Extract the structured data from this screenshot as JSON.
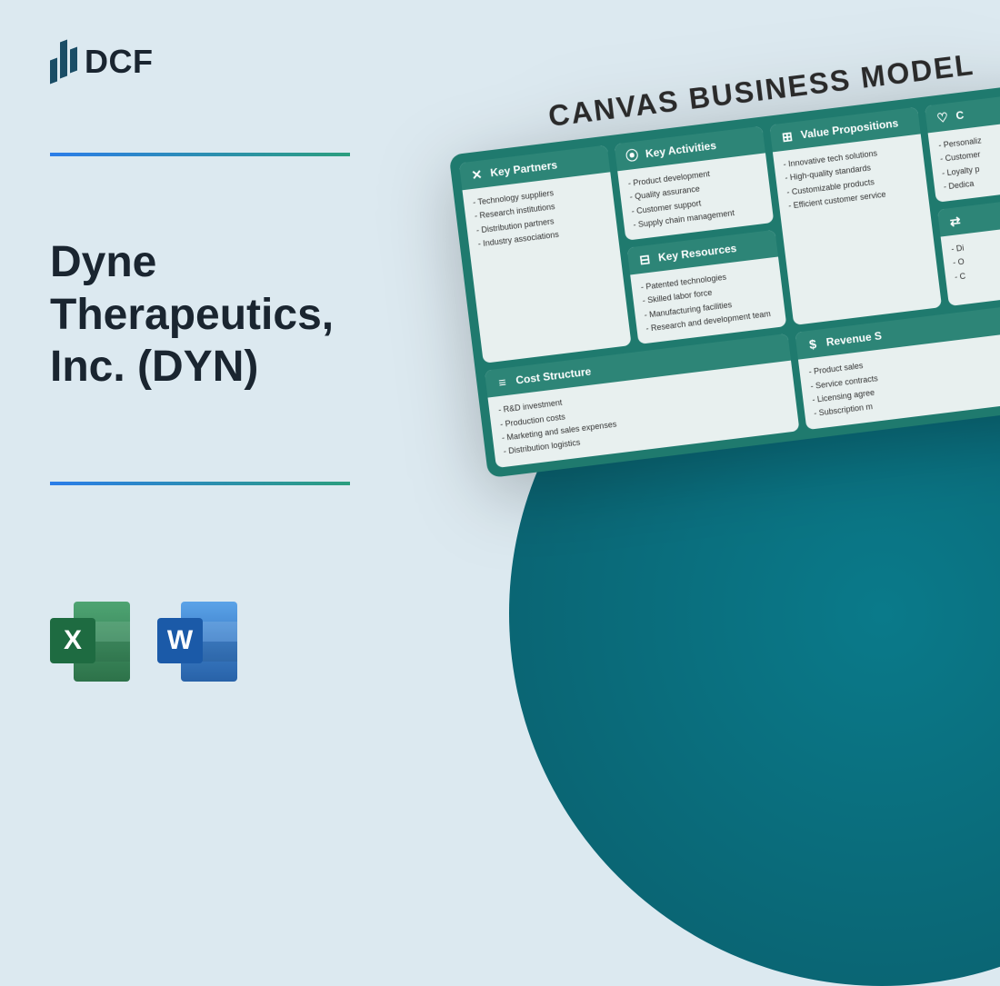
{
  "logo": {
    "text": "DCF"
  },
  "title": "Dyne Therapeutics, Inc. (DYN)",
  "colors": {
    "page_bg": "#dce9f0",
    "divider_gradient": [
      "#2b7de9",
      "#2b9e7e"
    ],
    "teal_circle": "#0a7a8a",
    "canvas_board_bg": "#1f7a6e",
    "canvas_header_bg": "#2d8577",
    "canvas_card_bg": "#e8f0ef",
    "title_color": "#1a2530"
  },
  "file_icons": {
    "excel": {
      "letter": "X",
      "badge_color": "#1e6b41"
    },
    "word": {
      "letter": "W",
      "badge_color": "#1b5aa8"
    }
  },
  "canvas": {
    "title": "CANVAS BUSINESS MODEL",
    "sections": {
      "key_partners": {
        "label": "Key Partners",
        "items": [
          "Technology suppliers",
          "Research institutions",
          "Distribution partners",
          "Industry associations"
        ]
      },
      "key_activities": {
        "label": "Key Activities",
        "items": [
          "Product development",
          "Quality assurance",
          "Customer support",
          "Supply chain management"
        ]
      },
      "key_resources": {
        "label": "Key Resources",
        "items": [
          "Patented technologies",
          "Skilled labor force",
          "Manufacturing facilities",
          "Research and development team"
        ]
      },
      "value_propositions": {
        "label": "Value Propositions",
        "items": [
          "Innovative tech solutions",
          "High-quality standards",
          "Customizable products",
          "Efficient customer service"
        ]
      },
      "customer_relationships": {
        "label": "C",
        "items": [
          "Personaliz",
          "Customer",
          "Loyalty p",
          "Dedica"
        ]
      },
      "channels": {
        "label": "",
        "items": [
          "Di",
          "O",
          "C"
        ]
      },
      "cost_structure": {
        "label": "Cost Structure",
        "items": [
          "R&D investment",
          "Production costs",
          "Marketing and sales expenses",
          "Distribution logistics"
        ]
      },
      "revenue_streams": {
        "label": "Revenue S",
        "items": [
          "Product sales",
          "Service contracts",
          "Licensing agree",
          "Subscription m"
        ]
      }
    }
  }
}
